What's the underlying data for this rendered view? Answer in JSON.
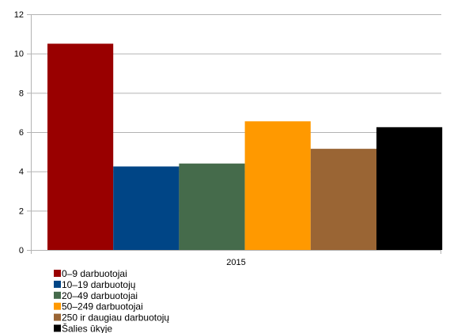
{
  "chart_data": {
    "type": "bar",
    "categories": [
      "2015"
    ],
    "series": [
      {
        "name": "0–9 darbuotojai",
        "values": [
          10.5
        ],
        "color": "#990000"
      },
      {
        "name": "10–19 darbuotojų",
        "values": [
          4.25
        ],
        "color": "#004586"
      },
      {
        "name": "20–49 darbuotojai",
        "values": [
          4.4
        ],
        "color": "#456b4b"
      },
      {
        "name": "50–249 darbuotojai",
        "values": [
          6.55
        ],
        "color": "#ff9900"
      },
      {
        "name": "250 ir daugiau darbuotojų",
        "values": [
          5.15
        ],
        "color": "#9a6534"
      },
      {
        "name": "Šalies ūkyje",
        "values": [
          6.25
        ],
        "color": "#000000"
      }
    ],
    "ylim": [
      0,
      12
    ],
    "yticks": [
      "0",
      "2",
      "4",
      "6",
      "8",
      "10",
      "12"
    ],
    "grid": "horizontal",
    "legend_position": "bottom-left"
  }
}
